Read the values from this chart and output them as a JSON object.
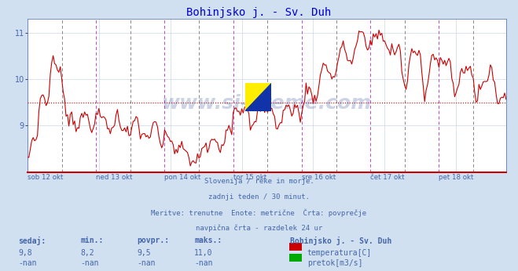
{
  "title": "Bohinjsko j. - Sv. Duh",
  "title_color": "#0000cc",
  "bg_color": "#d0e0f0",
  "plot_bg_color": "#ffffff",
  "grid_color": "#c8d8e8",
  "line_color": "#cc0000",
  "avg_line_color": "#cc0000",
  "avg_value": 9.5,
  "ylim": [
    8.0,
    11.3
  ],
  "yticks": [
    9,
    10,
    11
  ],
  "tick_label_color": "#4466aa",
  "text_color": "#4466aa",
  "vline_midnight_color": "#888888",
  "vline_midnight_style": "--",
  "vline_day_color": "#cc44cc",
  "vline_day_style": "--",
  "xaxis_color": "#cc0000",
  "footer_lines": [
    "Slovenija / reke in morje.",
    "zadnji teden / 30 minut.",
    "Meritve: trenutne  Enote: metrične  Črta: povprečje",
    "navpična črta - razdelek 24 ur"
  ],
  "stats_headers": [
    "sedaj:",
    "min.:",
    "povpr.:",
    "maks.:"
  ],
  "stats_temp": [
    "9,8",
    "8,2",
    "9,5",
    "11,0"
  ],
  "stats_pretok": [
    "-nan",
    "-nan",
    "-nan",
    "-nan"
  ],
  "legend_title": "Bohinjsko j. - Sv. Duh",
  "legend_items": [
    {
      "label": "temperatura[C]",
      "color": "#cc0000"
    },
    {
      "label": "pretok[m3/s]",
      "color": "#00aa00"
    }
  ],
  "watermark": "www.si-vreme.com",
  "num_points": 336,
  "day_labels": [
    "sob 12 okt",
    "ned 13 okt",
    "pon 14 okt",
    "tor 15 okt",
    "sre 16 okt",
    "čet 17 okt",
    "pet 18 okt"
  ],
  "day_tick_positions": [
    0,
    48,
    96,
    144,
    192,
    240,
    288
  ],
  "midnight_positions": [
    24,
    72,
    120,
    168,
    216,
    264,
    312
  ]
}
